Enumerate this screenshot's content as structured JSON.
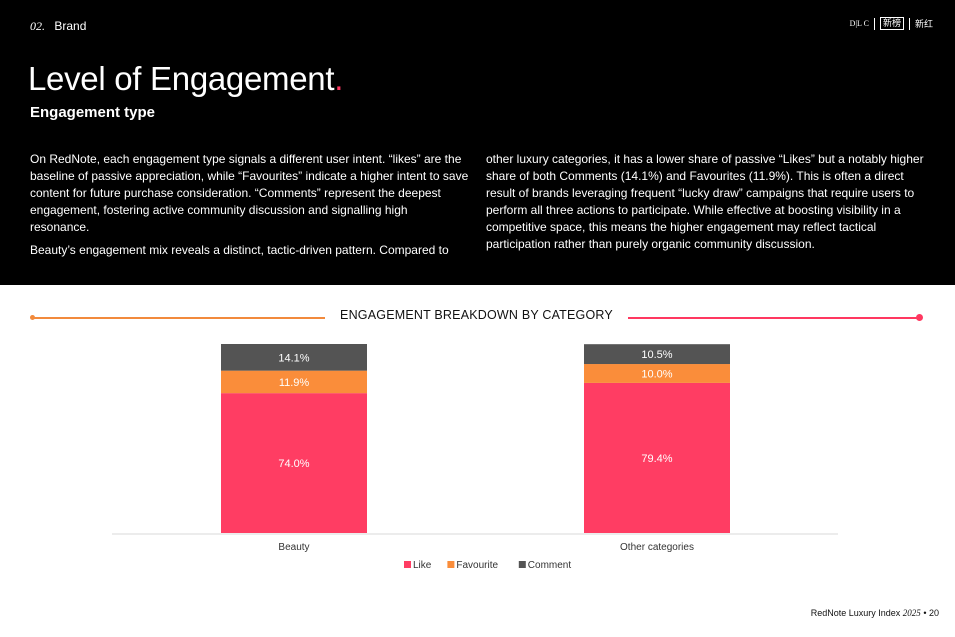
{
  "header": {
    "section_number": "02.",
    "section_name": "Brand",
    "brand_marks": [
      "D|L C",
      "新榜",
      "新红"
    ]
  },
  "title": "Level of Engagement",
  "title_dot": ".",
  "subtitle": "Engagement type",
  "body": {
    "left_p1": "On RedNote, each engagement type signals a different user intent. “likes” are the baseline of passive appreciation, while “Favourites” indicate a higher intent to save content for future purchase consideration. “Comments” represent the deepest engagement, fostering active community discussion and signalling high resonance.",
    "left_p2": "Beauty’s engagement mix reveals a distinct, tactic-driven pattern. Compared to",
    "right_p1": "other luxury categories, it has a lower share of passive “Likes” but a notably higher share of both Comments (14.1%) and Favourites (11.9%). This is often a direct result of brands leveraging frequent “lucky draw” campaigns that require users to perform all three actions to participate. While effective at boosting visibility in a competitive space, this means the higher engagement may reflect tactical participation rather than purely organic community discussion."
  },
  "colors": {
    "like": "#ff3d63",
    "favourite": "#fa8d3a",
    "comment": "#545454",
    "accent": "#ff3860"
  },
  "chart_data": {
    "type": "bar",
    "stacked": true,
    "title": "ENGAGEMENT BREAKDOWN BY CATEGORY",
    "categories": [
      "Beauty",
      "Other categories"
    ],
    "series": [
      {
        "name": "Like",
        "values": [
          74.0,
          79.4
        ],
        "labels": [
          "74.0%",
          "79.4%"
        ]
      },
      {
        "name": "Favourite",
        "values": [
          11.9,
          10.0
        ],
        "labels": [
          "11.9%",
          "10.0%"
        ]
      },
      {
        "name": "Comment",
        "values": [
          14.1,
          10.5
        ],
        "labels": [
          "14.1%",
          "10.5%"
        ]
      }
    ],
    "ylim": [
      0,
      100
    ],
    "grid": false,
    "legend_position": "bottom-center"
  },
  "footer": {
    "report": "RedNote Luxury Index",
    "year": "2025",
    "separator": "•",
    "page": "20"
  }
}
